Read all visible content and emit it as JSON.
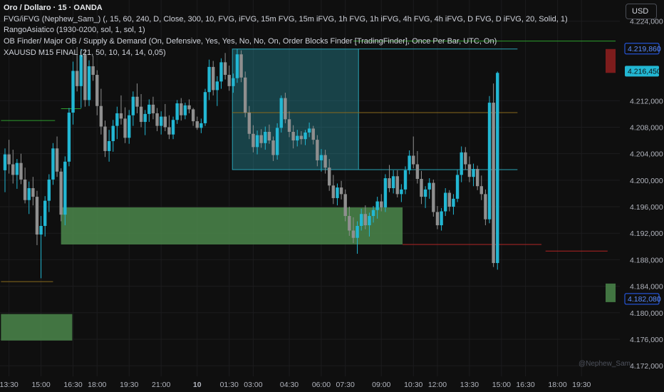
{
  "legend": {
    "title": "Oro / Dollaro · 15 · OANDA",
    "line1": "FVG/iFVG (Nephew_Sam_) (, 15, 60, 240, D, Close, 300, 10, FVG, iFVG, 15m FVG, 15m iFVG, 1h FVG, 1h iFVG, 4h FVG, 4h iFVG, D FVG, D iFVG, 20, Solid, 1)",
    "line2": "RangoAsiatico (1930-0200, sol, 1, sol, 1)",
    "line3": " OB Finder/ Major OB / Supply & Demand (On, Defensive, Yes, Yes, No, No, On, Order Blocks Finder [TradingFinder], Once Per Bar, UTC, On)",
    "line4": "XAUUSD M15 FINAL (21, 50, 10, 14, 14, 0,05)"
  },
  "currency_button": "USD",
  "watermark": "@Nephew_Sam_",
  "colors": {
    "bull": "#22b7d3",
    "bear": "#8f8f8f",
    "zone_green": "#4f8f4f",
    "zone_cyan": "#2aa3b5",
    "line_green": "#2f9e2f",
    "line_red": "#b22424",
    "line_orange": "#8a6a1c",
    "price_label_cyan": "#22b7d3",
    "price_label_blue": "#2962ff"
  },
  "chart_data": {
    "type": "candlestick",
    "symbol": "XAUUSD",
    "timeframe": "15",
    "ylim": [
      4170.4,
      4227.2
    ],
    "y_ticks": [
      4172.0,
      4176.0,
      4180.0,
      4184.0,
      4188.0,
      4192.0,
      4196.0,
      4200.0,
      4204.0,
      4208.0,
      4212.0,
      4224.0
    ],
    "y_tick_labels": [
      "4.172,000",
      "4.176,000",
      "4.180,000",
      "4.184,000",
      "4.188,000",
      "4.192,000",
      "4.196,000",
      "4.200,000",
      "4.204,000",
      "4.208,000",
      "4.212,000",
      "4.224,000"
    ],
    "x_labels": [
      "13:30",
      "15:00",
      "16:30",
      "18:00",
      "19:30",
      "21:00",
      "10",
      "01:30",
      "03:00",
      "04:30",
      "06:00",
      "07:30",
      "09:00",
      "10:30",
      "12:00",
      "13:30",
      "15:00",
      "16:30",
      "18:00",
      "19:30"
    ],
    "x_label_bold": "10",
    "price_labels": [
      {
        "value": 4219.86,
        "text": "4.219,860",
        "style": "outline-blue"
      },
      {
        "value": 4216.45,
        "text": "4.216,450",
        "style": "filled-cyan"
      },
      {
        "value": 4182.08,
        "text": "4.182,080",
        "style": "outline-blue"
      }
    ],
    "candles": [
      [
        4201.5,
        4204.8,
        4198.2,
        4203.9
      ],
      [
        4203.9,
        4206.1,
        4201.0,
        4202.4
      ],
      [
        4202.4,
        4204.6,
        4199.5,
        4200.8
      ],
      [
        4200.8,
        4203.2,
        4198.7,
        4202.6
      ],
      [
        4202.6,
        4204.0,
        4199.4,
        4200.1
      ],
      [
        4200.1,
        4201.9,
        4196.5,
        4197.0
      ],
      [
        4197.0,
        4199.8,
        4194.9,
        4198.8
      ],
      [
        4198.8,
        4200.5,
        4196.2,
        4197.5
      ],
      [
        4197.5,
        4198.4,
        4190.2,
        4191.8
      ],
      [
        4191.8,
        4194.6,
        4185.2,
        4193.1
      ],
      [
        4193.1,
        4197.6,
        4191.5,
        4196.9
      ],
      [
        4196.9,
        4200.9,
        4195.2,
        4200.1
      ],
      [
        4200.1,
        4205.6,
        4199.3,
        4204.8
      ],
      [
        4204.8,
        4206.6,
        4200.5,
        4201.3
      ],
      [
        4201.3,
        4201.8,
        4193.8,
        4194.8
      ],
      [
        4194.8,
        4203.6,
        4193.2,
        4202.8
      ],
      [
        4202.8,
        4210.9,
        4202.1,
        4210.2
      ],
      [
        4210.2,
        4217.9,
        4208.4,
        4216.5
      ],
      [
        4216.5,
        4220.1,
        4213.4,
        4214.2
      ],
      [
        4214.2,
        4219.8,
        4210.9,
        4218.9
      ],
      [
        4218.9,
        4219.8,
        4211.1,
        4212.1
      ],
      [
        4212.1,
        4218.1,
        4211.2,
        4217.2
      ],
      [
        4217.2,
        4218.8,
        4215.0,
        4215.9
      ],
      [
        4215.9,
        4216.6,
        4209.8,
        4211.2
      ],
      [
        4211.2,
        4213.8,
        4206.9,
        4208.1
      ],
      [
        4208.1,
        4209.0,
        4203.5,
        4204.4
      ],
      [
        4204.4,
        4207.6,
        4202.8,
        4205.9
      ],
      [
        4205.9,
        4209.1,
        4204.3,
        4208.2
      ],
      [
        4208.2,
        4211.1,
        4206.2,
        4210.1
      ],
      [
        4210.1,
        4212.8,
        4208.4,
        4209.3
      ],
      [
        4209.3,
        4211.0,
        4205.6,
        4206.4
      ],
      [
        4206.4,
        4210.6,
        4205.5,
        4209.8
      ],
      [
        4209.8,
        4213.4,
        4208.2,
        4212.6
      ],
      [
        4212.6,
        4214.6,
        4210.1,
        4211.1
      ],
      [
        4211.1,
        4213.0,
        4208.0,
        4208.8
      ],
      [
        4208.8,
        4210.6,
        4206.8,
        4210.0
      ],
      [
        4210.0,
        4212.2,
        4208.8,
        4211.4
      ],
      [
        4211.4,
        4212.6,
        4209.2,
        4210.1
      ],
      [
        4210.1,
        4210.9,
        4207.4,
        4208.2
      ],
      [
        4208.2,
        4210.4,
        4206.9,
        4209.6
      ],
      [
        4209.6,
        4211.5,
        4207.4,
        4208.0
      ],
      [
        4208.0,
        4209.8,
        4206.2,
        4206.9
      ],
      [
        4206.9,
        4209.6,
        4206.2,
        4209.1
      ],
      [
        4209.1,
        4212.1,
        4208.5,
        4211.6
      ],
      [
        4211.6,
        4212.4,
        4209.0,
        4209.8
      ],
      [
        4209.8,
        4211.7,
        4209.2,
        4211.3
      ],
      [
        4211.3,
        4212.2,
        4210.1,
        4210.7
      ],
      [
        4210.7,
        4210.9,
        4208.2,
        4208.9
      ],
      [
        4208.9,
        4209.6,
        4207.6,
        4207.9
      ],
      [
        4207.9,
        4209.3,
        4207.1,
        4208.6
      ],
      [
        4208.6,
        4213.8,
        4208.2,
        4213.3
      ],
      [
        4213.3,
        4218.2,
        4212.1,
        4217.1
      ],
      [
        4217.1,
        4218.0,
        4212.8,
        4213.6
      ],
      [
        4213.6,
        4215.7,
        4211.2,
        4214.9
      ],
      [
        4214.9,
        4218.4,
        4213.8,
        4217.8
      ],
      [
        4217.8,
        4219.2,
        4215.2,
        4215.9
      ],
      [
        4215.9,
        4217.3,
        4213.5,
        4214.2
      ],
      [
        4214.2,
        4216.1,
        4213.2,
        4215.4
      ],
      [
        4215.4,
        4219.8,
        4214.7,
        4219.0
      ],
      [
        4219.0,
        4219.6,
        4214.8,
        4215.5
      ],
      [
        4215.5,
        4216.4,
        4209.5,
        4210.2
      ],
      [
        4210.2,
        4211.2,
        4206.2,
        4207.0
      ],
      [
        4207.0,
        4208.3,
        4204.2,
        4205.0
      ],
      [
        4205.0,
        4207.5,
        4203.9,
        4206.8
      ],
      [
        4206.8,
        4207.7,
        4204.9,
        4205.6
      ],
      [
        4205.6,
        4208.1,
        4204.6,
        4207.3
      ],
      [
        4207.3,
        4208.4,
        4205.5,
        4206.0
      ],
      [
        4206.0,
        4206.6,
        4202.9,
        4203.8
      ],
      [
        4203.8,
        4208.6,
        4203.1,
        4207.9
      ],
      [
        4207.9,
        4212.8,
        4207.2,
        4212.4
      ],
      [
        4212.4,
        4213.2,
        4208.6,
        4209.2
      ],
      [
        4209.2,
        4210.4,
        4206.5,
        4207.3
      ],
      [
        4207.3,
        4208.3,
        4204.8,
        4206.0
      ],
      [
        4206.0,
        4207.6,
        4205.1,
        4206.7
      ],
      [
        4206.7,
        4207.4,
        4205.4,
        4206.2
      ],
      [
        4206.2,
        4207.6,
        4205.3,
        4207.2
      ],
      [
        4207.2,
        4208.7,
        4206.5,
        4207.8
      ],
      [
        4207.8,
        4208.2,
        4205.4,
        4206.1
      ],
      [
        4206.1,
        4206.8,
        4202.1,
        4203.0
      ],
      [
        4203.0,
        4204.7,
        4201.3,
        4203.8
      ],
      [
        4203.8,
        4204.6,
        4201.0,
        4201.9
      ],
      [
        4201.9,
        4203.2,
        4198.4,
        4199.2
      ],
      [
        4199.2,
        4200.8,
        4196.4,
        4197.3
      ],
      [
        4197.3,
        4199.5,
        4196.2,
        4198.9
      ],
      [
        4198.9,
        4199.9,
        4197.1,
        4197.9
      ],
      [
        4197.9,
        4198.6,
        4193.8,
        4194.6
      ],
      [
        4194.6,
        4196.0,
        4191.6,
        4192.4
      ],
      [
        4192.4,
        4194.4,
        4190.5,
        4191.3
      ],
      [
        4191.3,
        4193.8,
        4188.9,
        4193.1
      ],
      [
        4193.1,
        4195.7,
        4192.4,
        4194.9
      ],
      [
        4194.9,
        4196.2,
        4192.6,
        4193.2
      ],
      [
        4193.2,
        4195.1,
        4191.5,
        4194.6
      ],
      [
        4194.6,
        4196.1,
        4193.6,
        4195.5
      ],
      [
        4195.5,
        4197.5,
        4194.2,
        4196.8
      ],
      [
        4196.8,
        4197.9,
        4195.3,
        4195.9
      ],
      [
        4195.9,
        4200.9,
        4195.2,
        4200.3
      ],
      [
        4200.3,
        4202.3,
        4198.2,
        4198.8
      ],
      [
        4198.8,
        4201.5,
        4198.0,
        4200.6
      ],
      [
        4200.6,
        4201.5,
        4197.4,
        4197.9
      ],
      [
        4197.9,
        4199.4,
        4196.7,
        4198.6
      ],
      [
        4198.6,
        4202.1,
        4197.9,
        4201.5
      ],
      [
        4201.5,
        4204.5,
        4200.9,
        4203.7
      ],
      [
        4203.7,
        4206.6,
        4201.8,
        4202.4
      ],
      [
        4202.4,
        4204.4,
        4199.5,
        4200.2
      ],
      [
        4200.2,
        4201.4,
        4196.4,
        4197.5
      ],
      [
        4197.5,
        4199.1,
        4195.8,
        4198.6
      ],
      [
        4198.6,
        4200.3,
        4197.2,
        4199.6
      ],
      [
        4199.6,
        4200.1,
        4194.5,
        4195.2
      ],
      [
        4195.2,
        4196.1,
        4192.6,
        4193.2
      ],
      [
        4193.2,
        4195.8,
        4192.4,
        4195.3
      ],
      [
        4195.3,
        4198.8,
        4194.6,
        4198.1
      ],
      [
        4198.1,
        4198.5,
        4195.3,
        4196.0
      ],
      [
        4196.0,
        4197.9,
        4194.8,
        4197.2
      ],
      [
        4197.2,
        4201.6,
        4196.7,
        4200.8
      ],
      [
        4200.8,
        4205.1,
        4199.7,
        4204.2
      ],
      [
        4204.2,
        4205.0,
        4201.6,
        4202.4
      ],
      [
        4202.4,
        4203.6,
        4199.7,
        4200.5
      ],
      [
        4200.5,
        4202.5,
        4199.1,
        4201.7
      ],
      [
        4201.7,
        4202.2,
        4198.5,
        4199.1
      ],
      [
        4199.1,
        4200.7,
        4197.0,
        4197.9
      ],
      [
        4197.9,
        4198.6,
        4193.2,
        4194.1
      ],
      [
        4194.1,
        4212.7,
        4193.5,
        4211.7
      ],
      [
        4211.7,
        4214.6,
        4186.9,
        4187.5
      ],
      [
        4187.5,
        4216.4,
        4186.5,
        4216.2
      ]
    ],
    "zones": [
      {
        "name": "demand-zone-main",
        "type": "order-block",
        "x_from": 14.0,
        "x_to": 99.3,
        "y_top": 4195.9,
        "y_bottom": 4190.3
      },
      {
        "name": "demand-zone-lower",
        "type": "order-block",
        "x_from": -1.0,
        "x_to": 16.8,
        "y_top": 4179.8,
        "y_bottom": 4175.8
      },
      {
        "name": "supply-zone-asian-range",
        "type": "asian-range",
        "x_from": 56.8,
        "x_to": 88.3,
        "y_top": 4219.8,
        "y_bottom": 4201.6
      },
      {
        "name": "green-bar-right",
        "type": "order-block",
        "x_from": 150.0,
        "x_to": 152.5,
        "y_top": 4184.4,
        "y_bottom": 4181.6
      },
      {
        "name": "red-bar-right",
        "type": "order-block",
        "x_from": 150.0,
        "x_to": 152.5,
        "y_top": 4219.8,
        "y_bottom": 4216.2
      }
    ],
    "levels": [
      {
        "name": "green-level-top",
        "color": "line_green",
        "price": 4221.0,
        "x_from": 87.0,
        "x_to": 152.5
      },
      {
        "name": "green-level-mid",
        "color": "line_green",
        "price": 4209.0,
        "x_from": -1.0,
        "x_to": 12.5
      },
      {
        "name": "green-level-left",
        "color": "line_green",
        "price": 4210.8,
        "x_from": 14.0,
        "x_to": 19.0
      },
      {
        "name": "orange-level-low",
        "color": "line_orange",
        "price": 4184.7,
        "x_from": -1.0,
        "x_to": 12.0
      },
      {
        "name": "orange-level-mid",
        "color": "line_orange",
        "price": 4210.2,
        "x_from": 56.8,
        "x_to": 128.0
      },
      {
        "name": "cyan-level-range-low",
        "color": "zone_cyan",
        "price": 4201.6,
        "x_from": 88.3,
        "x_to": 128.0
      },
      {
        "name": "red-level-a",
        "color": "line_red",
        "price": 4190.3,
        "x_from": 99.3,
        "x_to": 134.0
      },
      {
        "name": "red-level-b",
        "color": "line_red",
        "price": 4189.3,
        "x_from": 135.0,
        "x_to": 150.5
      },
      {
        "name": "cyan-level-top",
        "color": "zone_cyan",
        "price": 4219.8,
        "x_from": 88.3,
        "x_to": 128.0
      }
    ],
    "x_tick_bars": [
      1,
      9,
      17,
      23,
      31,
      39,
      48,
      56,
      62,
      71,
      79,
      85,
      94,
      102,
      108,
      116,
      124,
      130,
      138,
      144
    ],
    "grid": true,
    "legend_position": "top-left"
  }
}
